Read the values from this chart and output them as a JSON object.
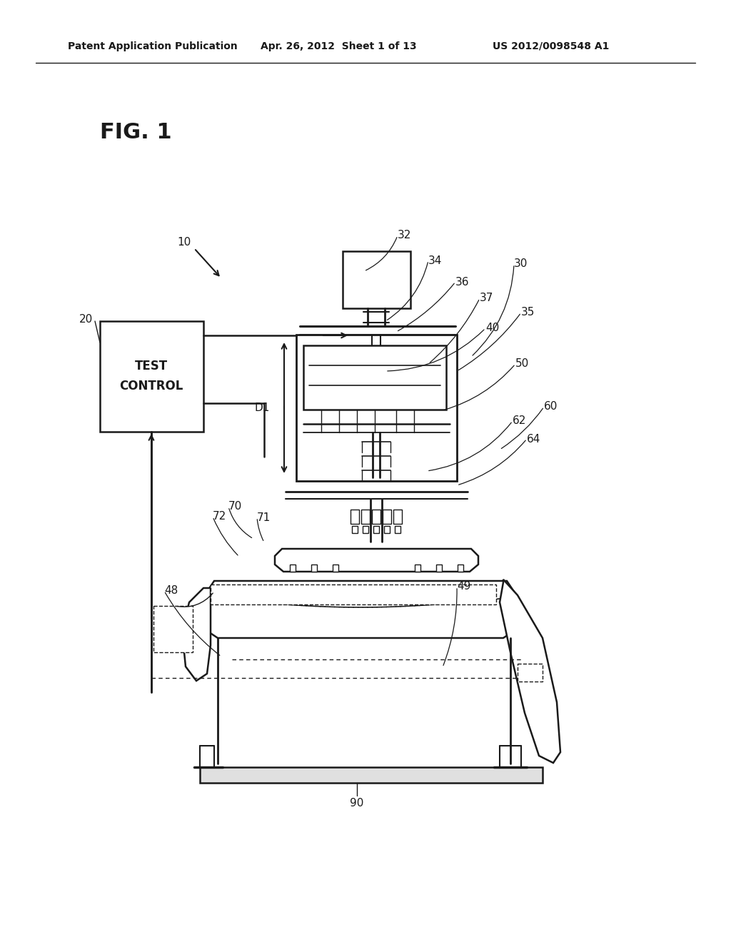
{
  "bg_color": "#ffffff",
  "line_color": "#1a1a1a",
  "header_left": "Patent Application Publication",
  "header_mid": "Apr. 26, 2012  Sheet 1 of 13",
  "header_right": "US 2012/0098548 A1",
  "fig_label": "FIG. 1"
}
